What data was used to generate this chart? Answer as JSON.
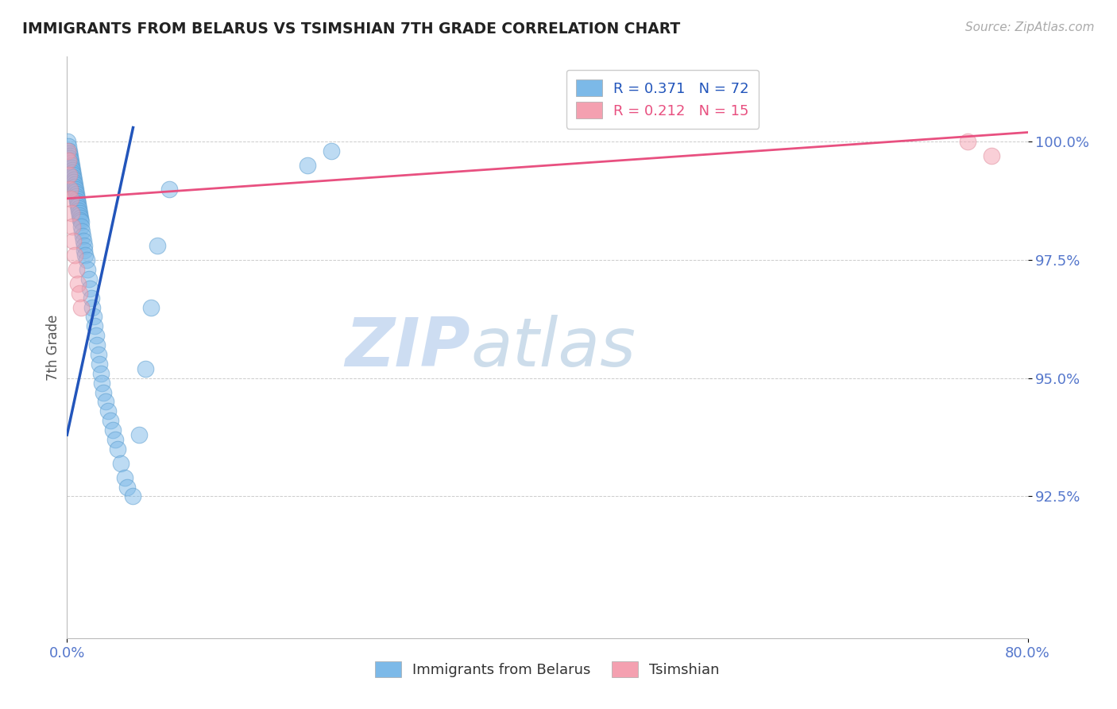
{
  "title": "IMMIGRANTS FROM BELARUS VS TSIMSHIAN 7TH GRADE CORRELATION CHART",
  "source_text": "Source: ZipAtlas.com",
  "ylabel": "7th Grade",
  "xlim": [
    0.0,
    80.0
  ],
  "ylim": [
    89.5,
    101.8
  ],
  "yticks": [
    92.5,
    95.0,
    97.5,
    100.0
  ],
  "ytick_labels": [
    "92.5%",
    "95.0%",
    "97.5%",
    "100.0%"
  ],
  "xtick_labels": [
    "0.0%",
    "80.0%"
  ],
  "xtick_vals": [
    0.0,
    80.0
  ],
  "blue_scatter_x": [
    0.05,
    0.1,
    0.15,
    0.18,
    0.22,
    0.25,
    0.28,
    0.32,
    0.35,
    0.38,
    0.42,
    0.45,
    0.48,
    0.52,
    0.55,
    0.58,
    0.62,
    0.65,
    0.68,
    0.72,
    0.75,
    0.78,
    0.82,
    0.85,
    0.88,
    0.92,
    0.95,
    0.98,
    1.02,
    1.05,
    1.08,
    1.12,
    1.15,
    1.2,
    1.25,
    1.3,
    1.35,
    1.4,
    1.45,
    1.5,
    1.6,
    1.7,
    1.8,
    1.9,
    2.0,
    2.1,
    2.2,
    2.3,
    2.4,
    2.5,
    2.6,
    2.7,
    2.8,
    2.9,
    3.0,
    3.2,
    3.4,
    3.6,
    3.8,
    4.0,
    4.2,
    4.5,
    4.8,
    5.0,
    5.5,
    6.0,
    6.5,
    7.0,
    7.5,
    8.5,
    20.0,
    22.0
  ],
  "blue_scatter_y": [
    100.0,
    99.9,
    99.8,
    99.75,
    99.7,
    99.65,
    99.6,
    99.55,
    99.5,
    99.45,
    99.4,
    99.35,
    99.3,
    99.25,
    99.2,
    99.15,
    99.1,
    99.05,
    99.0,
    98.95,
    98.9,
    98.85,
    98.8,
    98.75,
    98.7,
    98.65,
    98.6,
    98.55,
    98.5,
    98.45,
    98.4,
    98.35,
    98.3,
    98.2,
    98.1,
    98.0,
    97.9,
    97.8,
    97.7,
    97.6,
    97.5,
    97.3,
    97.1,
    96.9,
    96.7,
    96.5,
    96.3,
    96.1,
    95.9,
    95.7,
    95.5,
    95.3,
    95.1,
    94.9,
    94.7,
    94.5,
    94.3,
    94.1,
    93.9,
    93.7,
    93.5,
    93.2,
    92.9,
    92.7,
    92.5,
    93.8,
    95.2,
    96.5,
    97.8,
    99.0,
    99.5,
    99.8
  ],
  "pink_scatter_x": [
    0.05,
    0.1,
    0.15,
    0.22,
    0.28,
    0.35,
    0.42,
    0.52,
    0.65,
    0.78,
    0.92,
    1.05,
    1.2,
    75.0,
    77.0
  ],
  "pink_scatter_y": [
    99.8,
    99.6,
    99.3,
    99.0,
    98.8,
    98.5,
    98.2,
    97.9,
    97.6,
    97.3,
    97.0,
    96.8,
    96.5,
    100.0,
    99.7
  ],
  "blue_line_x0": 0.0,
  "blue_line_y0": 93.8,
  "blue_line_x1": 5.5,
  "blue_line_y1": 100.3,
  "pink_line_x0": 0.0,
  "pink_line_y0": 98.8,
  "pink_line_x1": 80.0,
  "pink_line_y1": 100.2,
  "blue_line_r": 0.371,
  "blue_line_n": 72,
  "pink_line_r": 0.212,
  "pink_line_n": 15,
  "blue_color": "#7cb9e8",
  "blue_edge_color": "#5599cc",
  "blue_line_color": "#2255bb",
  "pink_color": "#f4a0b0",
  "pink_edge_color": "#dd8898",
  "pink_line_color": "#e85080",
  "title_color": "#222222",
  "axis_tick_color": "#5577cc",
  "grid_color": "#cccccc",
  "legend_r_color": "#2255bb",
  "legend_n_color": "#cc3366",
  "watermark_zip_color": "#c5d8f0",
  "watermark_atlas_color": "#c5d8e8",
  "source_color": "#aaaaaa",
  "ylabel_color": "#555555",
  "background_color": "#ffffff",
  "legend_text_blue_color": "#2255bb",
  "legend_text_pink_color": "#e85080"
}
